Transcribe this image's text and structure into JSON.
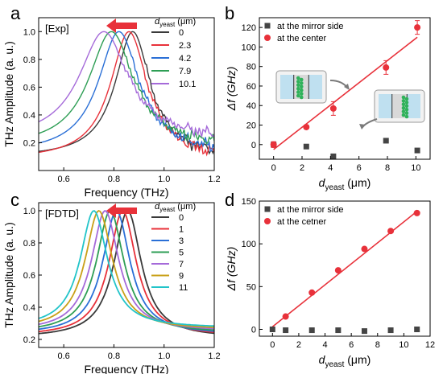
{
  "chart_data": [
    {
      "type": "line",
      "panel": "a",
      "tag": "[Exp]",
      "xlabel": "Frequency (THz)",
      "ylabel": "THz Amplitude (a. u.)",
      "xlim": [
        0.5,
        1.2
      ],
      "ylim": [
        0.0,
        1.1
      ],
      "xticks": [
        "0.6",
        "0.8",
        "1.0",
        "1.2"
      ],
      "yticks": [
        "0.2",
        "0.4",
        "0.6",
        "0.8",
        "1.0"
      ],
      "legend_title": "d",
      "legend_title_sub": "yeast",
      "legend_title_unit": "(μm)",
      "series": [
        {
          "name": "0",
          "color": "#3a3a3a",
          "peak": 0.875,
          "width": 0.085,
          "base": 0.11
        },
        {
          "name": "2.3",
          "color": "#e8313a",
          "peak": 0.86,
          "width": 0.09,
          "base": 0.09
        },
        {
          "name": "4.2",
          "color": "#2a6fd6",
          "peak": 0.82,
          "width": 0.1,
          "base": 0.14
        },
        {
          "name": "7.9",
          "color": "#2e9e55",
          "peak": 0.79,
          "width": 0.11,
          "base": 0.19
        },
        {
          "name": "10.1",
          "color": "#a56ad9",
          "peak": 0.76,
          "width": 0.12,
          "base": 0.25
        }
      ]
    },
    {
      "type": "scatter",
      "panel": "b",
      "xlabel": "d",
      "xlabel_sub": "yeast",
      "xlabel_unit": "(μm)",
      "ylabel": "Δf (GHz)",
      "xlim": [
        -1,
        11
      ],
      "ylim": [
        -15,
        130
      ],
      "xticks": [
        "0",
        "2",
        "4",
        "6",
        "8",
        "10"
      ],
      "yticks": [
        "0",
        "20",
        "40",
        "60",
        "80",
        "100",
        "120"
      ],
      "series": [
        {
          "name": "at the mirror side",
          "marker": "square",
          "color": "#444444",
          "x": [
            0,
            2.3,
            4.2,
            7.9,
            10.1
          ],
          "y": [
            0,
            -2,
            -12,
            4,
            -6
          ]
        },
        {
          "name": "at the center",
          "marker": "circle",
          "color": "#e8313a",
          "x": [
            0,
            2.3,
            4.2,
            7.9,
            10.1
          ],
          "y": [
            0,
            18,
            37,
            79,
            120
          ],
          "err": [
            3,
            2,
            7,
            7,
            7
          ]
        }
      ],
      "fit": {
        "x": [
          0,
          10.1
        ],
        "y": [
          -5,
          110
        ],
        "color": "#e8313a"
      }
    },
    {
      "type": "line",
      "panel": "c",
      "tag": "[FDTD]",
      "xlabel": "Frequency (THz)",
      "ylabel": "THz Amplitude (a. u.)",
      "xlim": [
        0.5,
        1.2
      ],
      "ylim": [
        0.15,
        1.05
      ],
      "xticks": [
        "0.6",
        "0.8",
        "1.0",
        "1.2"
      ],
      "yticks": [
        "0.2",
        "0.4",
        "0.6",
        "0.8",
        "1.0"
      ],
      "legend_title": "d",
      "legend_title_sub": "yeast",
      "legend_title_unit": "(μm)",
      "series": [
        {
          "name": "0",
          "color": "#3a3a3a",
          "peak": 0.855,
          "width": 0.12,
          "base": 0.21
        },
        {
          "name": "1",
          "color": "#e8313a",
          "peak": 0.835,
          "width": 0.12,
          "base": 0.22
        },
        {
          "name": "3",
          "color": "#2a6fd6",
          "peak": 0.81,
          "width": 0.12,
          "base": 0.23
        },
        {
          "name": "5",
          "color": "#2e9e55",
          "peak": 0.785,
          "width": 0.12,
          "base": 0.24
        },
        {
          "name": "7",
          "color": "#a56ad9",
          "peak": 0.765,
          "width": 0.12,
          "base": 0.25
        },
        {
          "name": "9",
          "color": "#c9a018",
          "peak": 0.74,
          "width": 0.12,
          "base": 0.26
        },
        {
          "name": "11",
          "color": "#22c4c9",
          "peak": 0.72,
          "width": 0.12,
          "base": 0.27
        }
      ]
    },
    {
      "type": "scatter",
      "panel": "d",
      "xlabel": "d",
      "xlabel_sub": "yeast",
      "xlabel_unit": "(μm)",
      "ylabel": "Δf (GHz)",
      "xlim": [
        -1,
        12
      ],
      "ylim": [
        -8,
        150
      ],
      "xticks": [
        "0",
        "2",
        "4",
        "6",
        "8",
        "10",
        "12"
      ],
      "yticks": [
        "0",
        "50",
        "100",
        "150"
      ],
      "series": [
        {
          "name": "at the mirror side",
          "marker": "square",
          "color": "#444444",
          "x": [
            0,
            1,
            3,
            5,
            7,
            9,
            11
          ],
          "y": [
            0,
            -1,
            -1,
            -1,
            -2,
            -1,
            0
          ]
        },
        {
          "name": "at the cetner",
          "marker": "circle",
          "color": "#e8313a",
          "x": [
            1,
            3,
            5,
            7,
            9,
            11
          ],
          "y": [
            15,
            43,
            69,
            94,
            115,
            136
          ]
        }
      ],
      "fit": {
        "x": [
          0,
          11
        ],
        "y": [
          3,
          138
        ],
        "color": "#e8313a"
      }
    }
  ]
}
